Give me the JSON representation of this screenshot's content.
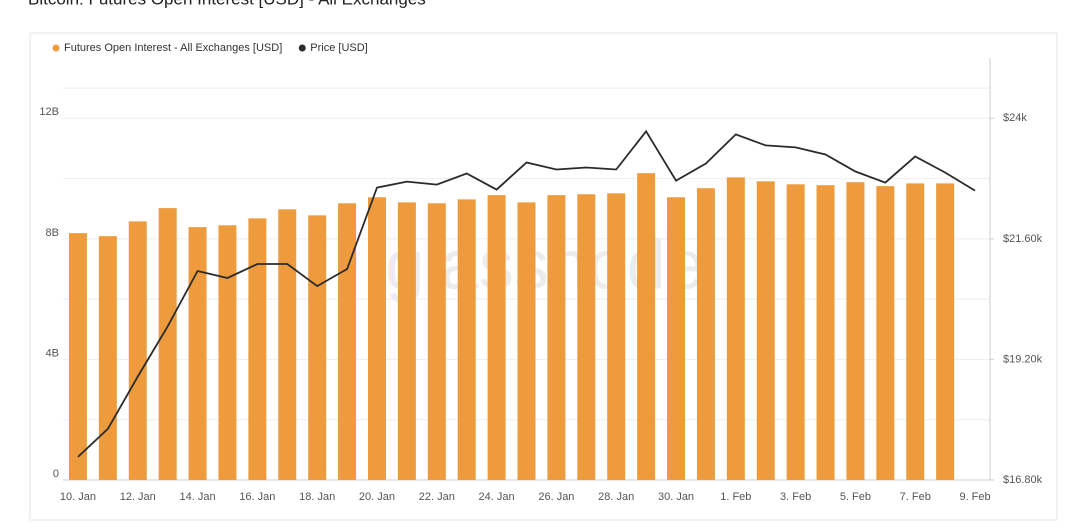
{
  "chart_data": {
    "type": "bar_line",
    "title": "Bitcoin: Futures Open Interest [USD] - All Exchanges",
    "watermark": "glassnode",
    "categories": [
      "10. Jan",
      null,
      "12. Jan",
      null,
      "14. Jan",
      null,
      "16. Jan",
      null,
      "18. Jan",
      null,
      "20. Jan",
      null,
      "22. Jan",
      null,
      "24. Jan",
      null,
      "26. Jan",
      null,
      "28. Jan",
      null,
      "30. Jan",
      null,
      "1. Feb",
      null,
      "3. Feb",
      null,
      "5. Feb",
      null,
      "7. Feb",
      null,
      "9. Feb"
    ],
    "series": [
      {
        "name": "Futures Open Interest - All Exchanges [USD]",
        "type": "bar",
        "color": "#ee9b3d",
        "values": [
          8190000000,
          8090000000,
          8580000000,
          9020000000,
          8390000000,
          8450000000,
          8680000000,
          8980000000,
          8780000000,
          9180000000,
          9380000000,
          9210000000,
          9180000000,
          9310000000,
          9450000000,
          9210000000,
          9450000000,
          9480000000,
          9510000000,
          10180000000,
          9380000000,
          9680000000,
          10040000000,
          9910000000,
          9810000000,
          9780000000,
          9880000000,
          9750000000,
          9840000000,
          9840000000,
          null
        ]
      },
      {
        "name": "Price [USD]",
        "type": "line",
        "axis": "y2",
        "color": "#2b2b2b",
        "values": [
          17260,
          17820,
          18860,
          19860,
          20960,
          20820,
          21100,
          21100,
          20660,
          21000,
          22620,
          22740,
          22680,
          22900,
          22580,
          23120,
          22980,
          23020,
          22980,
          23740,
          22760,
          23100,
          23680,
          23460,
          23420,
          23280,
          22940,
          22720,
          23240,
          22920,
          22560
        ]
      }
    ],
    "ylim": [
      0,
      14000000000
    ],
    "yticks": [
      0,
      {
        "value": 4000000000,
        "label": "4B"
      },
      {
        "value": 8000000000,
        "label": "8B"
      },
      {
        "value": 12000000000,
        "label": "12B"
      }
    ],
    "y2lim": [
      16800,
      25200
    ],
    "y2ticks": [
      {
        "value": 16800,
        "label": "$16.80k"
      },
      {
        "value": 19200,
        "label": "$19.20k"
      },
      {
        "value": 21600,
        "label": "$21.60k"
      },
      {
        "value": 24000,
        "label": "$24k"
      }
    ],
    "grid": true,
    "legend": "top-left"
  }
}
